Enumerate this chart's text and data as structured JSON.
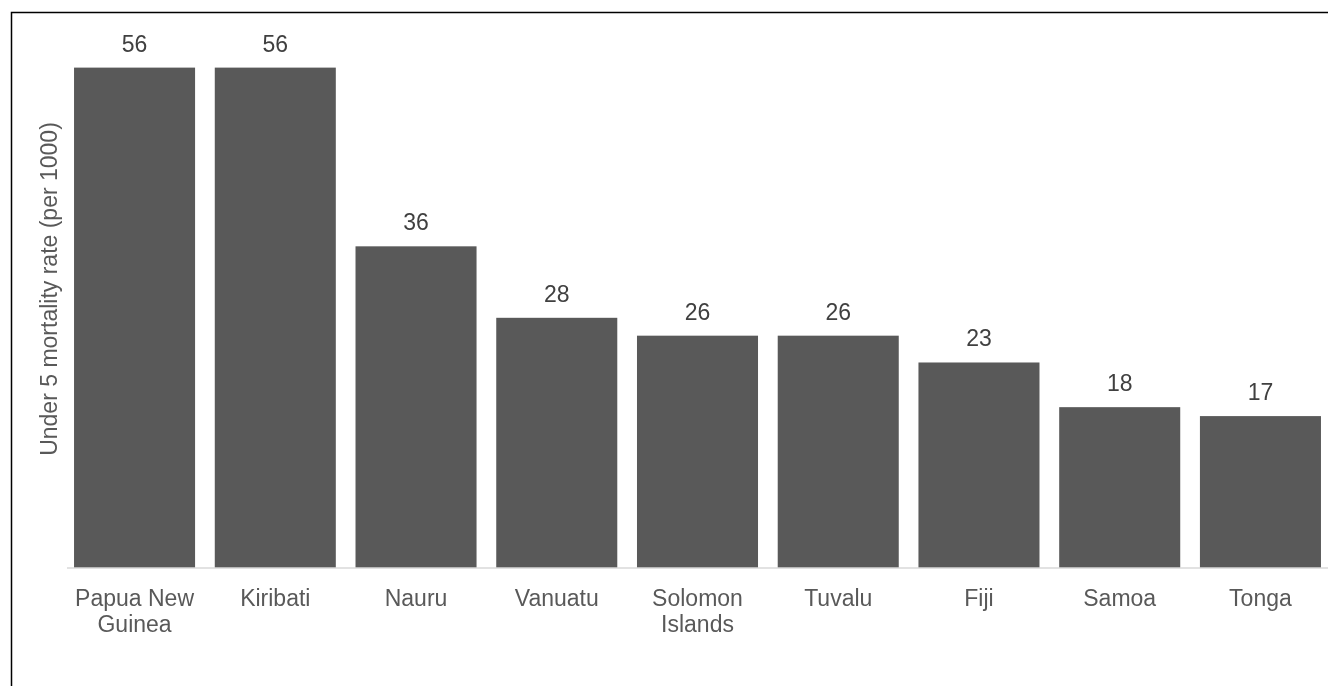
{
  "chart_data": {
    "type": "bar",
    "ylabel": "Under 5 mortality rate (per 1000)",
    "categories": [
      "Papua New Guinea",
      "Kiribati",
      "Nauru",
      "Vanuatu",
      "Solomon Islands",
      "Tuvalu",
      "Fiji",
      "Samoa",
      "Tonga"
    ],
    "values": [
      56,
      56,
      36,
      28,
      26,
      26,
      23,
      18,
      17
    ],
    "color": "#595959",
    "ylim": [
      0,
      62
    ],
    "data_labels": true,
    "tick_labels": "x"
  }
}
